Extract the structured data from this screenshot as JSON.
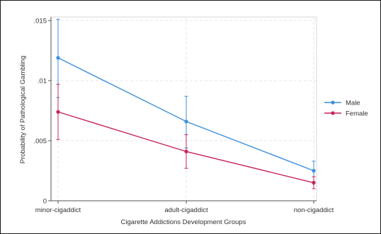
{
  "chart_data": {
    "type": "line",
    "title": "",
    "xlabel": "Cigarette Addictions Development Groups",
    "ylabel": "Probability of Pathological Gambling",
    "categories": [
      "minor-cigaddict",
      "adult-cigaddict",
      "non-cigaddict"
    ],
    "ylim": [
      0,
      0.0153
    ],
    "yticks": [
      0,
      0.005,
      0.01,
      0.015
    ],
    "ytick_labels": [
      "0",
      ".005",
      ".01",
      ".015"
    ],
    "grid": true,
    "legend_position": "right",
    "series": [
      {
        "name": "Male",
        "color": "#3b8fe0",
        "values": [
          0.0119,
          0.0066,
          0.0025
        ],
        "ci_low": [
          0.0086,
          0.0044,
          0.0016
        ],
        "ci_high": [
          0.0151,
          0.0087,
          0.0033
        ]
      },
      {
        "name": "Female",
        "color": "#c8245a",
        "values": [
          0.0074,
          0.0041,
          0.0015
        ],
        "ci_low": [
          0.0051,
          0.0027,
          0.001
        ],
        "ci_high": [
          0.0097,
          0.0055,
          0.002
        ]
      }
    ]
  }
}
